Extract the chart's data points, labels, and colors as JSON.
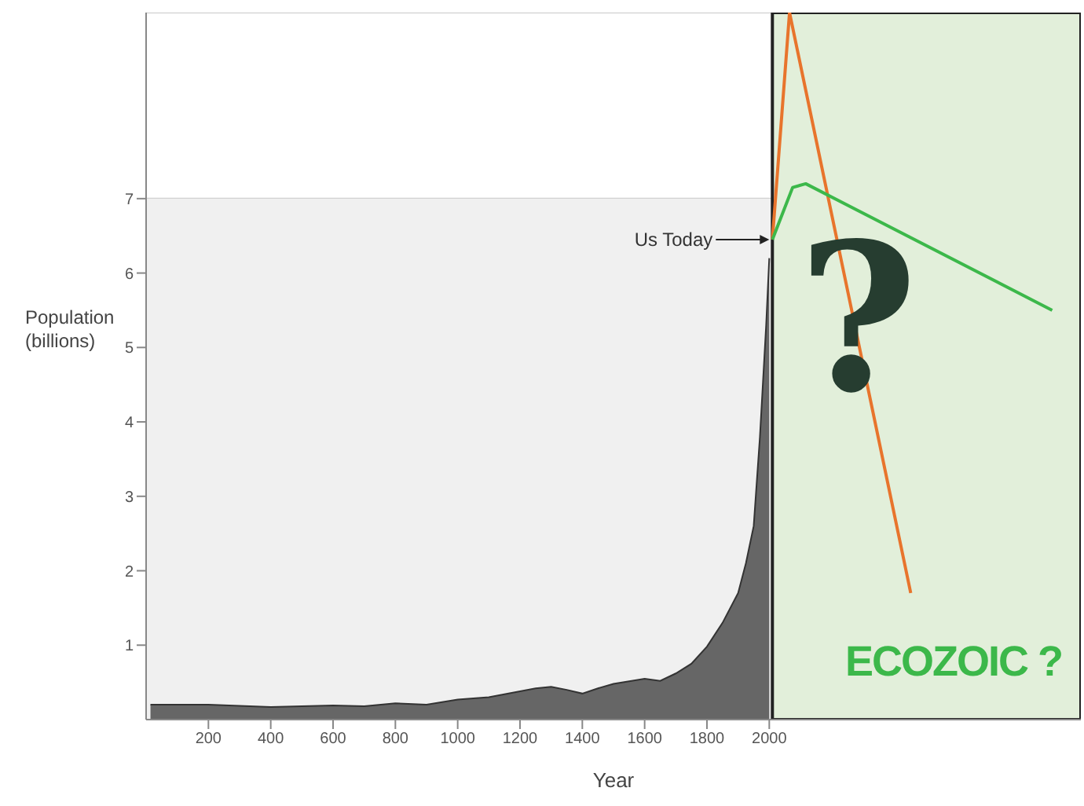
{
  "chart_data": {
    "type": "area",
    "xlabel": "Year",
    "ylabel": "Population\n(billions)",
    "xlim": [
      0,
      3000
    ],
    "ylim": [
      0,
      9.5
    ],
    "xticks": [
      200,
      400,
      600,
      800,
      1000,
      1200,
      1400,
      1600,
      1800,
      2000
    ],
    "yticks": [
      1,
      2,
      3,
      4,
      5,
      6,
      7
    ],
    "grid": "y",
    "series": [
      {
        "color": "#666666",
        "x": [
          14,
          200,
          400,
          600,
          700,
          800,
          900,
          1000,
          1100,
          1200,
          1250,
          1300,
          1350,
          1400,
          1450,
          1500,
          1600,
          1650,
          1700,
          1750,
          1800,
          1850,
          1900,
          1925,
          1950,
          1970,
          1990,
          2000
        ],
        "values": [
          0.2,
          0.2,
          0.17,
          0.19,
          0.18,
          0.22,
          0.2,
          0.27,
          0.3,
          0.38,
          0.42,
          0.44,
          0.4,
          0.35,
          0.42,
          0.48,
          0.55,
          0.52,
          0.62,
          0.75,
          0.98,
          1.3,
          1.7,
          2.1,
          2.6,
          3.8,
          5.3,
          6.2
        ]
      },
      {
        "type": "line",
        "color": "#e8742c",
        "x": [
          2010,
          2065,
          2454
        ],
        "values": [
          6.45,
          9.5,
          1.7
        ]
      },
      {
        "type": "line",
        "color": "#3cb84a",
        "x": [
          2010,
          2075,
          2117,
          2908
        ],
        "values": [
          6.45,
          7.15,
          7.2,
          5.5
        ]
      }
    ],
    "bands": [
      {
        "axis": "y",
        "from": 0,
        "to": 7,
        "color": "#f0f0f0"
      },
      {
        "axis": "x",
        "from": 2010,
        "to": 3000,
        "color": "#e2efda"
      }
    ],
    "annotations": [
      {
        "text": "Us Today",
        "x": 2010,
        "y": 6.45
      },
      "?",
      "ECOZOIC ?"
    ]
  }
}
